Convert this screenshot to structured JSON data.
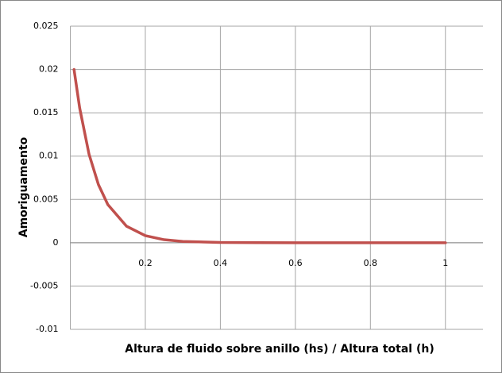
{
  "chart_data": {
    "type": "line",
    "x_label": "Altura de fluido sobre  anillo (hs) / Altura total (h)",
    "y_label": "Amoriguamento",
    "xlim": [
      0,
      1.1
    ],
    "xticks": [
      0.2,
      0.4,
      0.6,
      0.8,
      1
    ],
    "ylim": [
      -0.01,
      0.025
    ],
    "yticks": [
      -0.01,
      -0.005,
      0,
      0.005,
      0.01,
      0.015,
      0.02,
      0.025
    ],
    "grid": true,
    "x": [
      0.01,
      0.025,
      0.05,
      0.075,
      0.1,
      0.15,
      0.2,
      0.25,
      0.3,
      0.4,
      0.5,
      0.6,
      0.7,
      0.8,
      0.9,
      1
    ],
    "series": [
      {
        "name": "Amoriguamento",
        "color": "#c0504d",
        "values": [
          0.02,
          0.01555,
          0.01021,
          0.00671,
          0.00441,
          0.0019,
          0.00082,
          0.00035,
          0.00015,
          3e-05,
          1e-05,
          0,
          0,
          0,
          0,
          0
        ]
      }
    ]
  }
}
